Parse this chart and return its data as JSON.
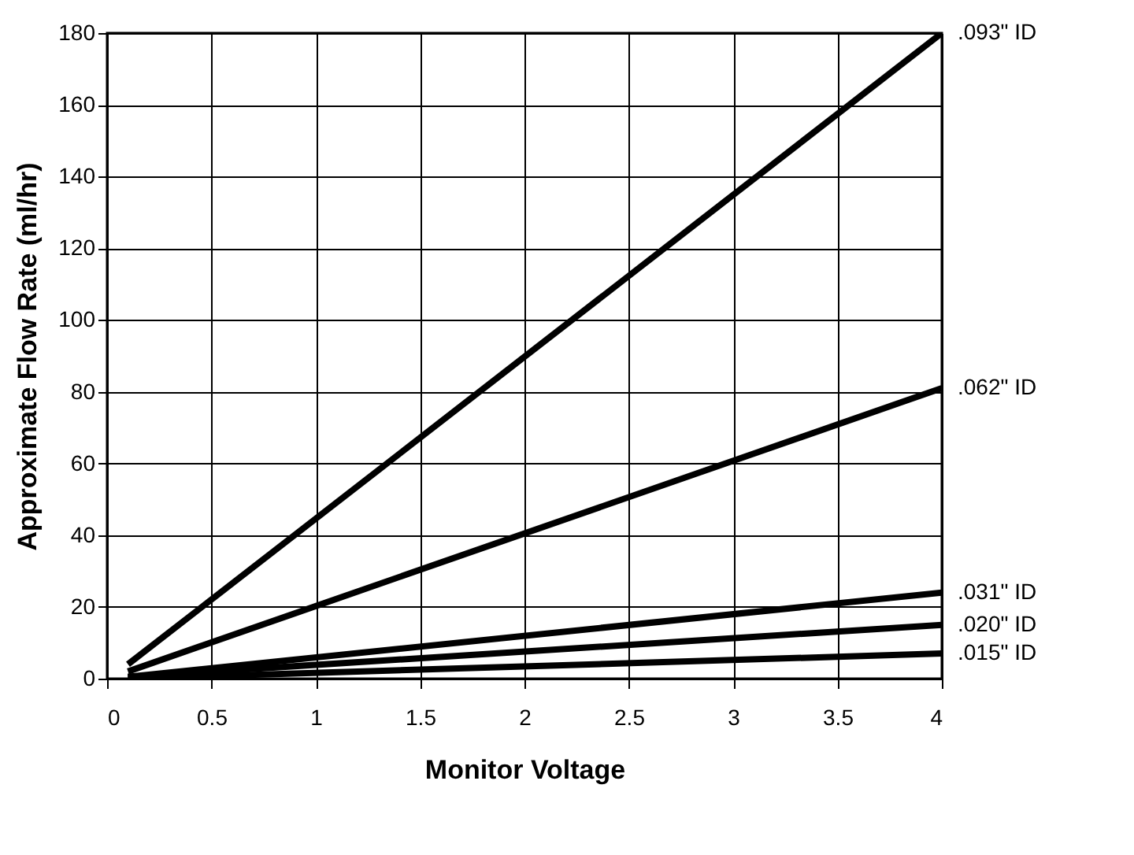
{
  "chart_data": {
    "type": "line",
    "xlabel": "Monitor Voltage",
    "ylabel": "Approximate Flow Rate (ml/hr)",
    "x": [
      0.1,
      4
    ],
    "series": [
      {
        "name": ".093\" ID",
        "color": "#000000",
        "values": [
          4,
          180
        ]
      },
      {
        "name": ".062\" ID",
        "color": "#000000",
        "values": [
          2,
          81
        ]
      },
      {
        "name": ".031\" ID",
        "color": "#000000",
        "values": [
          0.5,
          24
        ]
      },
      {
        "name": ".020\" ID",
        "color": "#000000",
        "values": [
          0.5,
          15
        ]
      },
      {
        "name": ".015\" ID",
        "color": "#000000",
        "values": [
          0,
          7
        ]
      }
    ],
    "xlim": [
      0,
      4
    ],
    "xticks": [
      0,
      0.5,
      1,
      1.5,
      2,
      2.5,
      3,
      3.5,
      4
    ],
    "ylim": [
      0,
      180
    ],
    "yticks": [
      0,
      20,
      40,
      60,
      80,
      100,
      120,
      140,
      160,
      180
    ],
    "grid": true,
    "legend": false,
    "marker": "none",
    "line_style": "solid"
  }
}
